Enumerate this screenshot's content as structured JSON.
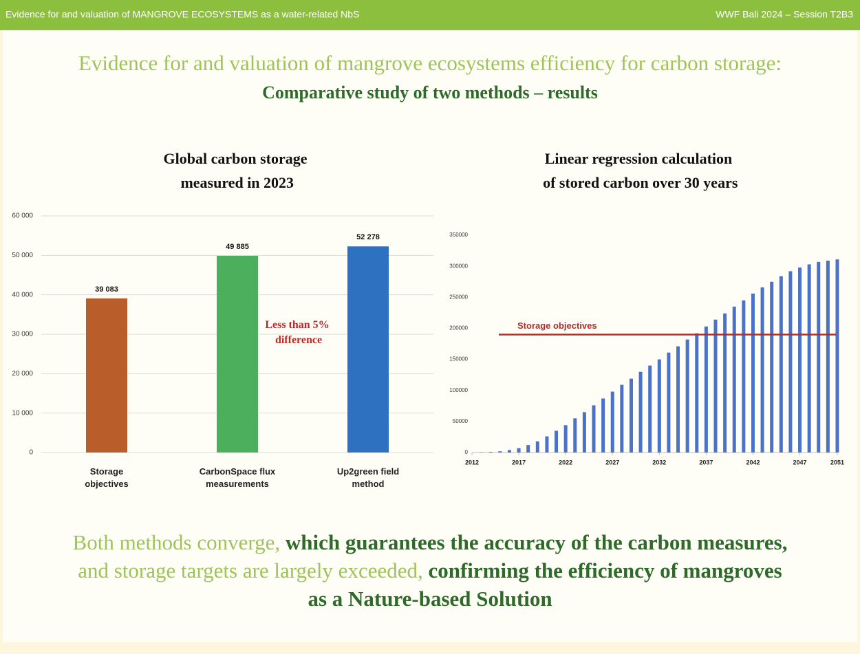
{
  "header": {
    "left": "Evidence for and valuation of MANGROVE ECOSYSTEMS as a water-related NbS",
    "right": "WWF Bali 2024 – Session T2B3"
  },
  "title": "Evidence for and valuation of mangrove ecosystems efficiency for carbon storage:",
  "subtitle": "Comparative study of two methods – results",
  "chart_data": [
    {
      "type": "bar",
      "title": "Global carbon storage measured in 2023",
      "categories": [
        "Storage objectives",
        "CarbonSpace flux measurements",
        "Up2green field method"
      ],
      "values": [
        39083,
        49885,
        52278
      ],
      "value_labels": [
        "39 083",
        "49 885",
        "52 278"
      ],
      "colors": [
        "#b95d2a",
        "#4caf5b",
        "#2f71c1"
      ],
      "ylim": [
        0,
        60000
      ],
      "yticks": [
        {
          "value": 0,
          "label": "0"
        },
        {
          "value": 10000,
          "label": "10 000"
        },
        {
          "value": 20000,
          "label": "20 000"
        },
        {
          "value": 30000,
          "label": "30 000"
        },
        {
          "value": 40000,
          "label": "40 000"
        },
        {
          "value": 50000,
          "label": "50 000"
        },
        {
          "value": 60000,
          "label": "60 000"
        }
      ],
      "grid": true,
      "annotation": "Less than 5% difference"
    },
    {
      "type": "bar",
      "title": "Linear regression calculation of stored carbon over 30 years",
      "x": [
        2013,
        2014,
        2015,
        2016,
        2017,
        2018,
        2019,
        2020,
        2021,
        2022,
        2023,
        2024,
        2025,
        2026,
        2027,
        2028,
        2029,
        2030,
        2031,
        2032,
        2033,
        2034,
        2035,
        2036,
        2037,
        2038,
        2039,
        2040,
        2041,
        2042,
        2043,
        2044,
        2045,
        2046,
        2047,
        2048,
        2049,
        2050,
        2051
      ],
      "values": [
        500,
        1000,
        2000,
        4000,
        7000,
        12000,
        18000,
        26000,
        35000,
        44000,
        55000,
        65000,
        76000,
        87000,
        98000,
        109000,
        119000,
        130000,
        140000,
        150000,
        161000,
        171000,
        182000,
        192000,
        203000,
        214000,
        224000,
        235000,
        245000,
        256000,
        266000,
        275000,
        284000,
        292000,
        298000,
        303000,
        307000,
        309000,
        311000
      ],
      "color": "#4a72c8",
      "xlim": [
        2012,
        2051
      ],
      "xticks": [
        2012,
        2017,
        2022,
        2027,
        2032,
        2037,
        2042,
        2047,
        2051
      ],
      "ylim": [
        0,
        350000
      ],
      "yticks": [
        0,
        50000,
        100000,
        150000,
        200000,
        250000,
        300000,
        350000
      ],
      "grid": false,
      "reference_line": {
        "label": "Storage objectives",
        "value": 190000,
        "color": "#b52a2a"
      }
    }
  ],
  "conclusion": [
    {
      "text": "Both methods converge, ",
      "bold": false
    },
    {
      "text": "which guarantees the accuracy of the carbon measures,",
      "bold": true
    },
    {
      "text": " and storage targets are largely exceeded, ",
      "bold": false
    },
    {
      "text": "confirming the efficiency of mangroves as a Nature-based Solution",
      "bold": true
    }
  ]
}
